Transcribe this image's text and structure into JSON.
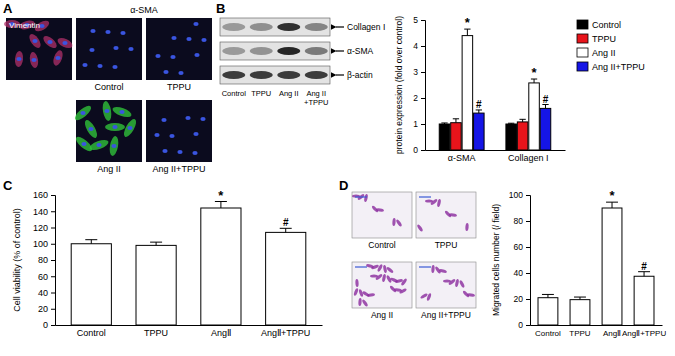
{
  "panel_labels": [
    "A",
    "B",
    "C",
    "D"
  ],
  "panel_a": {
    "marker_labels": [
      "Vimentin",
      "α-SMA"
    ],
    "image_labels": [
      "Control",
      "TPPU",
      "Ang II",
      "Ang II+TPPU"
    ]
  },
  "blot": {
    "bands": [
      "Collagen I",
      "α-SMA",
      "β-actin"
    ],
    "lanes": [
      [
        "Control"
      ],
      [
        "TPPU"
      ],
      [
        "Ang II"
      ],
      [
        "Ang II",
        "+TPPU"
      ]
    ]
  },
  "panel_d_images": {
    "image_labels": [
      "Control",
      "TPPU",
      "Ang II",
      "Ang II+TPPU"
    ]
  },
  "chart_data": [
    {
      "type": "bar",
      "y_label": "protein expression (fold over control)",
      "categories": [
        "α-SMA",
        "Collagen I"
      ],
      "series": [
        {
          "name": "Control",
          "color": "#000000",
          "values": [
            1,
            1
          ],
          "errors": [
            0.04,
            0.03
          ]
        },
        {
          "name": "TPPU",
          "color": "#e8141b",
          "values": [
            1.05,
            1.08
          ],
          "errors": [
            0.15,
            0.1
          ]
        },
        {
          "name": "Ang II",
          "color": "#ffffff",
          "values": [
            4.4,
            2.58
          ],
          "errors": [
            0.25,
            0.15
          ],
          "significance": [
            "*",
            "*"
          ]
        },
        {
          "name": "Ang II+TPPU",
          "color": "#1515e6",
          "values": [
            1.42,
            1.6
          ],
          "errors": [
            0.12,
            0.15
          ],
          "significance": [
            "#",
            "#"
          ]
        }
      ],
      "ylim": [
        0,
        5
      ],
      "yticks": [
        0,
        1,
        2,
        3,
        4,
        5
      ],
      "legend": "top-right"
    },
    {
      "type": "bar",
      "y_label": "Cell viability (% of control)",
      "categories": [
        "Control",
        "TPPU",
        "AngⅡ",
        "AngⅡ+TPPU"
      ],
      "values": [
        100,
        98,
        144,
        114
      ],
      "errors": [
        5,
        4,
        8,
        5
      ],
      "significance": [
        null,
        null,
        "*",
        "#"
      ],
      "color": "#ffffff",
      "ylim": [
        0,
        160
      ],
      "yticks": [
        0,
        20,
        40,
        60,
        80,
        100,
        120,
        140,
        160
      ]
    },
    {
      "type": "bar",
      "y_label": "Migrated cells number (/ field)",
      "categories": [
        "Control",
        "TPPU",
        "AngⅡ",
        "AngⅡ+TPPU"
      ],
      "values": [
        21,
        19.5,
        90,
        37.5
      ],
      "errors": [
        2.5,
        2,
        4.5,
        3.5
      ],
      "significance": [
        null,
        null,
        "*",
        "#"
      ],
      "color": "#ffffff",
      "ylim": [
        0,
        100
      ],
      "yticks": [
        0,
        20,
        40,
        60,
        80,
        100
      ]
    }
  ]
}
